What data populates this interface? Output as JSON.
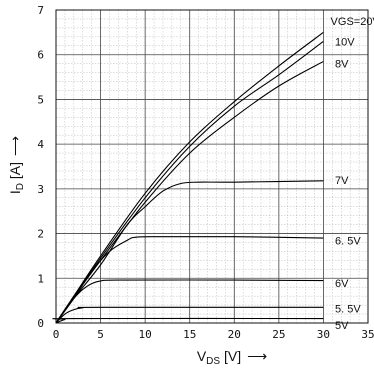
{
  "chart_data": {
    "type": "line",
    "title": "",
    "xlabel": {
      "main": "V",
      "sub": "DS",
      "unit": " [V]",
      "arrow": "⟶"
    },
    "ylabel": {
      "main": "I",
      "sub": "D",
      "unit": " [A]",
      "arrow": "⟶"
    },
    "xlim": [
      0,
      35
    ],
    "ylim": [
      0,
      7
    ],
    "x_ticks": [
      0,
      5,
      10,
      15,
      20,
      25,
      30,
      35
    ],
    "y_ticks": [
      0,
      1,
      2,
      3,
      4,
      5,
      6,
      7
    ],
    "grid": true,
    "series": [
      {
        "name": "VGS=20V",
        "points": [
          [
            0,
            0
          ],
          [
            2,
            0.6
          ],
          [
            5,
            1.5
          ],
          [
            10,
            2.9
          ],
          [
            15,
            4.05
          ],
          [
            20,
            4.95
          ],
          [
            25,
            5.75
          ],
          [
            30,
            6.5
          ]
        ]
      },
      {
        "name": "10V",
        "points": [
          [
            0,
            0
          ],
          [
            2,
            0.6
          ],
          [
            5,
            1.45
          ],
          [
            10,
            2.8
          ],
          [
            15,
            3.95
          ],
          [
            20,
            4.85
          ],
          [
            25,
            5.55
          ],
          [
            30,
            6.3
          ]
        ]
      },
      {
        "name": "8V",
        "points": [
          [
            0,
            0
          ],
          [
            2,
            0.58
          ],
          [
            5,
            1.4
          ],
          [
            10,
            2.7
          ],
          [
            15,
            3.8
          ],
          [
            20,
            4.6
          ],
          [
            25,
            5.3
          ],
          [
            30,
            5.85
          ]
        ]
      },
      {
        "name": "7V",
        "points": [
          [
            0,
            0
          ],
          [
            2,
            0.55
          ],
          [
            5,
            1.3
          ],
          [
            8,
            2.2
          ],
          [
            10,
            2.6
          ],
          [
            12,
            2.95
          ],
          [
            14,
            3.12
          ],
          [
            16,
            3.15
          ],
          [
            20,
            3.15
          ],
          [
            30,
            3.18
          ]
        ]
      },
      {
        "name": "6.5V",
        "points": [
          [
            0,
            0
          ],
          [
            2,
            0.55
          ],
          [
            4,
            1.15
          ],
          [
            6,
            1.6
          ],
          [
            8,
            1.85
          ],
          [
            9,
            1.92
          ],
          [
            12,
            1.93
          ],
          [
            20,
            1.93
          ],
          [
            30,
            1.9
          ]
        ]
      },
      {
        "name": "6V",
        "points": [
          [
            0,
            0
          ],
          [
            1,
            0.3
          ],
          [
            2,
            0.55
          ],
          [
            3,
            0.75
          ],
          [
            4,
            0.88
          ],
          [
            5,
            0.94
          ],
          [
            7,
            0.96
          ],
          [
            20,
            0.96
          ],
          [
            30,
            0.95
          ]
        ]
      },
      {
        "name": "5.5V",
        "points": [
          [
            0,
            0
          ],
          [
            1,
            0.2
          ],
          [
            2,
            0.3
          ],
          [
            3,
            0.34
          ],
          [
            5,
            0.35
          ],
          [
            30,
            0.35
          ]
        ]
      },
      {
        "name": "5V",
        "points": [
          [
            0,
            0
          ],
          [
            1,
            0.08
          ],
          [
            2,
            0.1
          ],
          [
            30,
            0.1
          ]
        ]
      }
    ],
    "curve_labels": [
      {
        "text": "VGS=20V",
        "x": 30.8,
        "y": 6.75
      },
      {
        "text": "10V",
        "x": 31.3,
        "y": 6.3
      },
      {
        "text": "8V",
        "x": 31.3,
        "y": 5.8
      },
      {
        "text": "7V",
        "x": 31.3,
        "y": 3.2
      },
      {
        "text": "6. 5V",
        "x": 31.3,
        "y": 1.85
      },
      {
        "text": "6V",
        "x": 31.3,
        "y": 0.9
      },
      {
        "text": "5. 5V",
        "x": 31.3,
        "y": 0.32
      },
      {
        "text": "5V",
        "x": 31.3,
        "y": -0.05
      }
    ]
  }
}
